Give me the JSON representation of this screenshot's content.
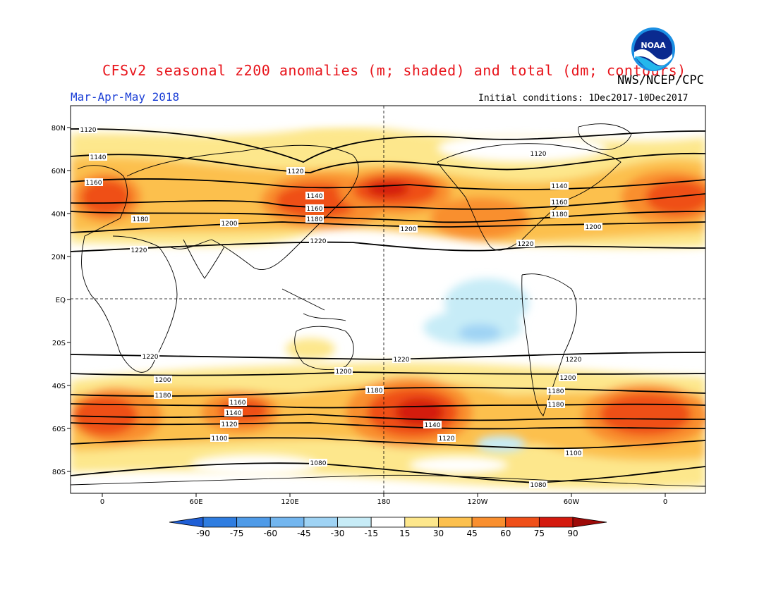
{
  "header": {
    "title": "CFSv2 seasonal z200 anomalies (m; shaded) and total (dm; contours)",
    "agency": "NWS/NCEP/CPC",
    "season": "Mar-Apr-May 2018",
    "initial_conditions": "Initial conditions: 1Dec2017-10Dec2017",
    "logo_text": "NOAA"
  },
  "axes": {
    "lat_labels": [
      "80N",
      "60N",
      "40N",
      "20N",
      "EQ",
      "20S",
      "40S",
      "60S",
      "80S"
    ],
    "lon_labels": [
      "0",
      "60E",
      "120E",
      "180",
      "120W",
      "60W",
      "0"
    ]
  },
  "colorbar": {
    "levels": [
      "-90",
      "-75",
      "-60",
      "-45",
      "-30",
      "-15",
      "15",
      "30",
      "45",
      "60",
      "75",
      "90"
    ],
    "colors": [
      "#1f5fd6",
      "#2f7de0",
      "#4f9be8",
      "#73b6ef",
      "#9fd3f4",
      "#c7ecf7",
      "#ffffff",
      "#fde78c",
      "#fcc04e",
      "#f98f2f",
      "#ef4f19",
      "#d41a0e",
      "#9e0a08"
    ]
  },
  "contours": {
    "labels": [
      "1120",
      "1140",
      "1160",
      "1180",
      "1200",
      "1220",
      "1100",
      "1080"
    ]
  },
  "colors": {
    "title": "#e8141b",
    "season": "#1a3ed6",
    "grid": "#000000"
  }
}
